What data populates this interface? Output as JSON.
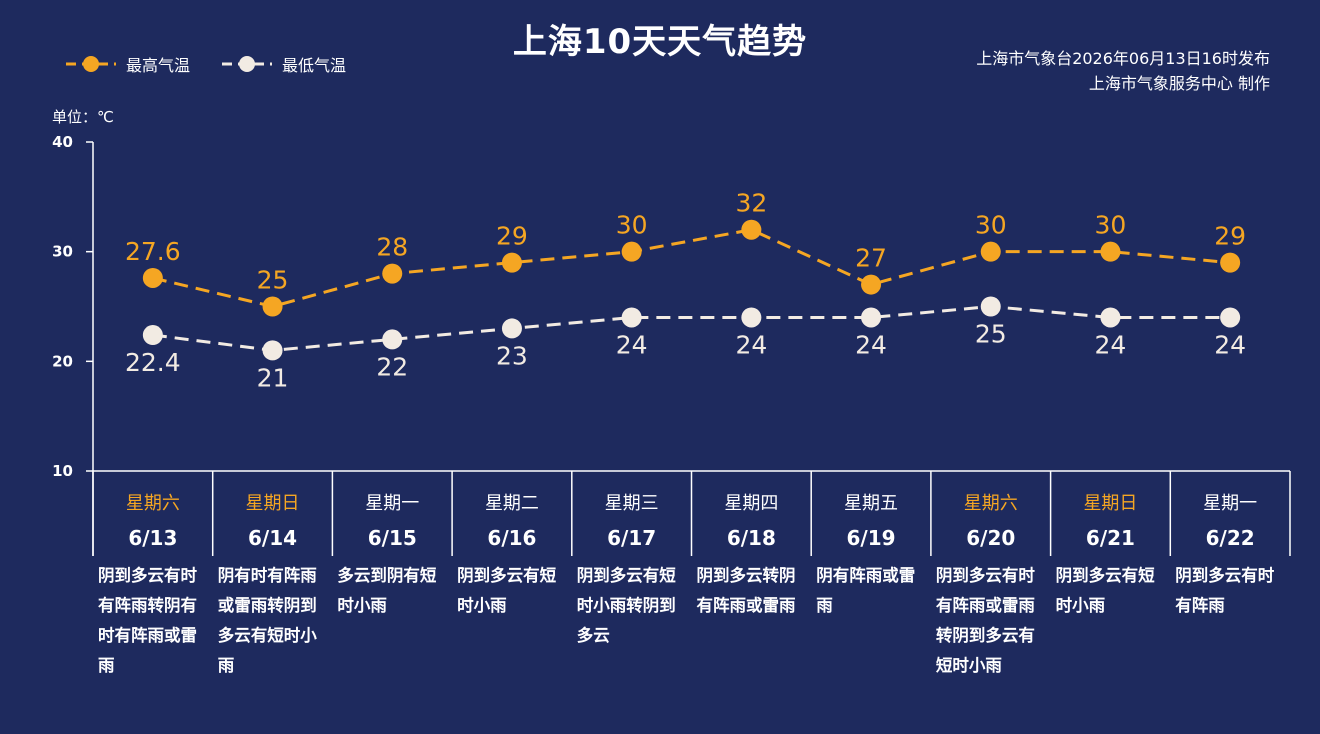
{
  "title": "上海10天天气趋势",
  "legend": {
    "high_label": "最高气温",
    "low_label": "最低气温"
  },
  "source": {
    "line1": "上海市气象台2026年06月13日16时发布",
    "line2": "上海市气象服务中心 制作"
  },
  "unit_label": "单位：℃",
  "colors": {
    "background": "#1e2a5e",
    "high": "#f5a623",
    "low": "#f2ebe3",
    "weekend": "#f5a623",
    "weekday": "#ffffff"
  },
  "chart_data": {
    "type": "line",
    "categories": [
      "6/13",
      "6/14",
      "6/15",
      "6/16",
      "6/17",
      "6/18",
      "6/19",
      "6/20",
      "6/21",
      "6/22"
    ],
    "weekdays": [
      "星期六",
      "星期日",
      "星期一",
      "星期二",
      "星期三",
      "星期四",
      "星期五",
      "星期六",
      "星期日",
      "星期一"
    ],
    "weekend": [
      true,
      true,
      false,
      false,
      false,
      false,
      false,
      true,
      true,
      false
    ],
    "series": [
      {
        "name": "最高气温",
        "values": [
          27.6,
          25,
          28,
          29,
          30,
          32,
          27,
          30,
          30,
          29
        ],
        "labels": [
          "27.6",
          "25",
          "28",
          "29",
          "30",
          "32",
          "27",
          "30",
          "30",
          "29"
        ]
      },
      {
        "name": "最低气温",
        "values": [
          22.4,
          21,
          22,
          23,
          24,
          24,
          24,
          25,
          24,
          24
        ],
        "labels": [
          "22.4",
          "21",
          "22",
          "23",
          "24",
          "24",
          "24",
          "25",
          "24",
          "24"
        ]
      }
    ],
    "yticks": [
      10,
      20,
      30,
      40
    ],
    "ylim": [
      10,
      40
    ],
    "weather": [
      "阴到多云有时有阵雨转阴有时有阵雨或雷雨",
      "阴有时有阵雨或雷雨转阴到多云有短时小雨",
      "多云到阴有短时小雨",
      "阴到多云有短时小雨",
      "阴到多云有短时小雨转阴到多云",
      "阴到多云转阴有阵雨或雷雨",
      "阴有阵雨或雷雨",
      "阴到多云有时有阵雨或雷雨转阴到多云有短时小雨",
      "阴到多云有短时小雨",
      "阴到多云有时有阵雨"
    ]
  }
}
